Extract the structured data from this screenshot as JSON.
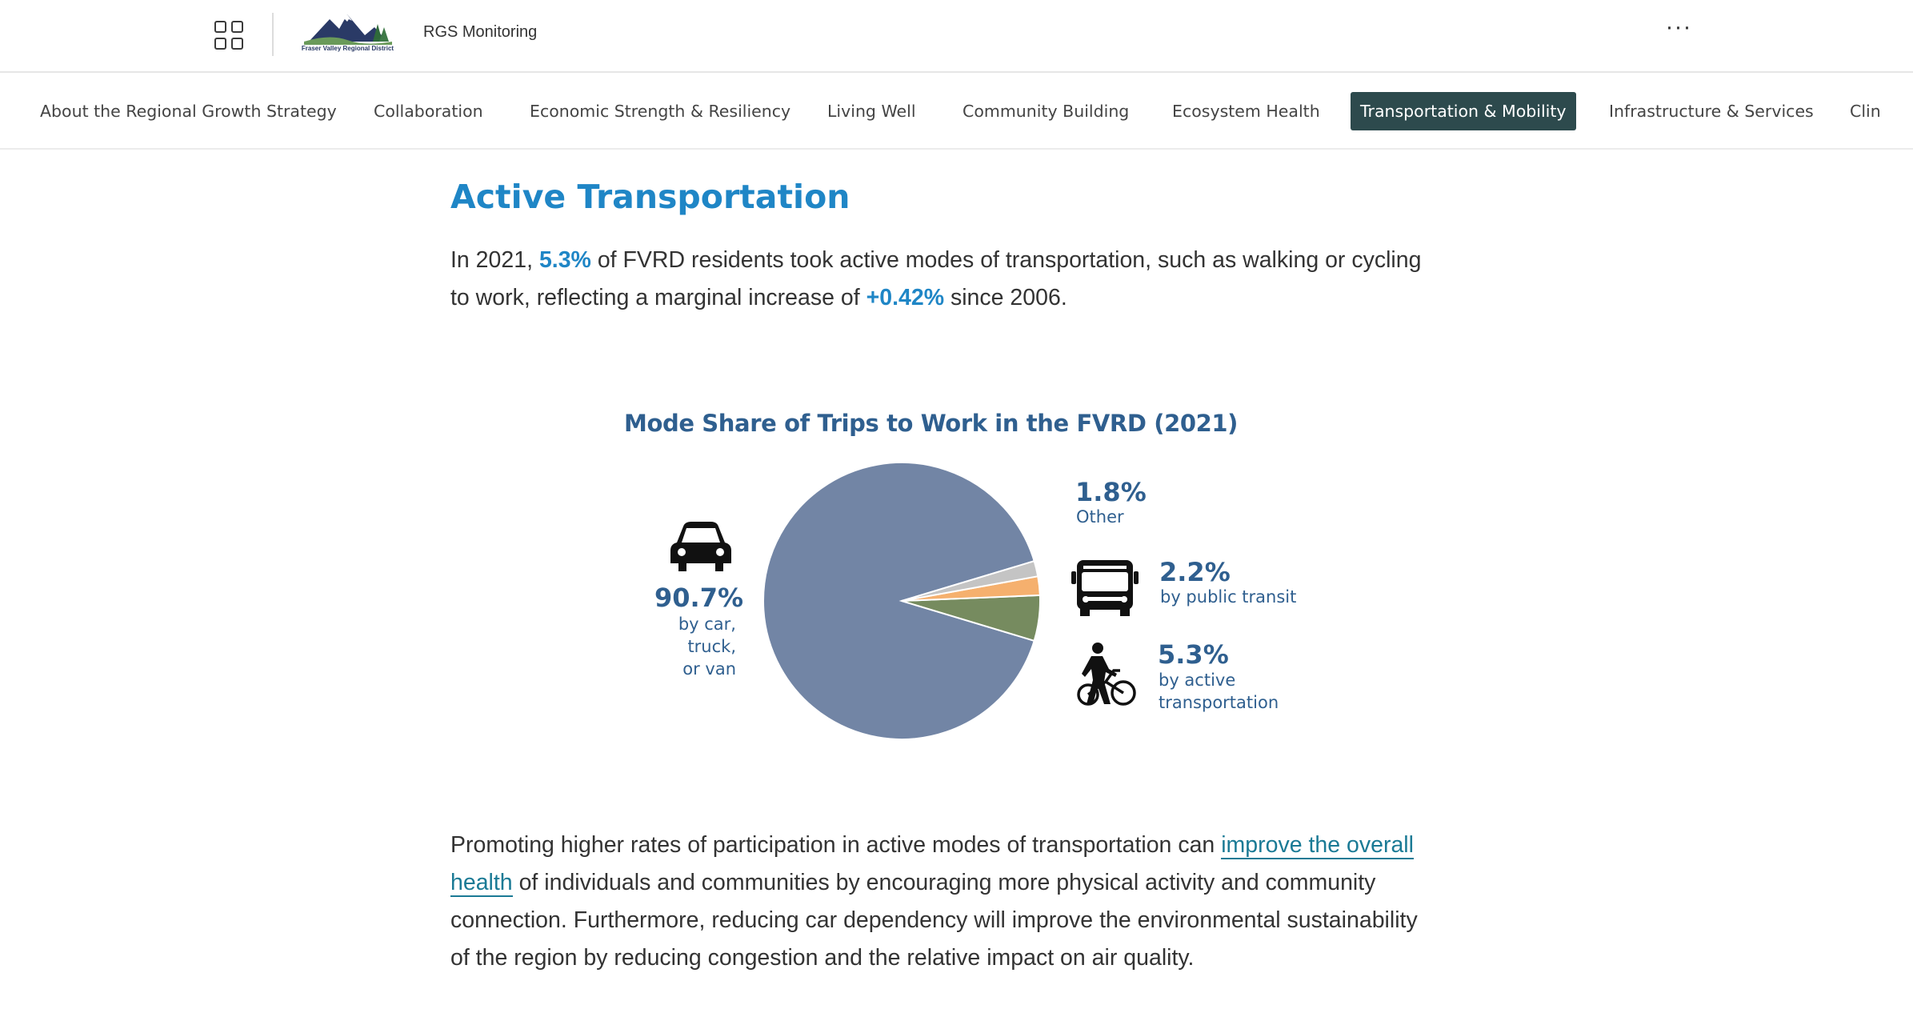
{
  "header": {
    "logo_text": "Fraser Valley Regional District",
    "site_title": "RGS Monitoring",
    "more_label": "···"
  },
  "nav": {
    "items": [
      {
        "label": "About the Regional Growth Strategy",
        "active": false
      },
      {
        "label": "Collaboration",
        "active": false
      },
      {
        "label": "Economic Strength & Resiliency",
        "active": false
      },
      {
        "label": "Living Well",
        "active": false
      },
      {
        "label": "Community Building",
        "active": false
      },
      {
        "label": "Ecosystem Health",
        "active": false
      },
      {
        "label": "Transportation & Mobility",
        "active": true
      },
      {
        "label": "Infrastructure & Services",
        "active": false
      },
      {
        "label": "Clin",
        "active": false
      }
    ]
  },
  "main": {
    "title": "Active Transportation",
    "intro": {
      "t1": "In 2021, ",
      "h1": "5.3%",
      "t2": " of FVRD residents took active modes of transportation, such as walking or cycling to work, reflecting a marginal increase of ",
      "h2": "+0.42%",
      "t3": " since 2006."
    },
    "body": {
      "t1": "Promoting higher rates of participation in active modes of transportation can ",
      "link": "improve the overall health",
      "t2": " of individuals and communities by encouraging more physical activity and community connection. Furthermore, reducing car dependency will improve the environmental sustainability of the region by reducing congestion and the relative impact on air quality."
    }
  },
  "chart_data": {
    "type": "pie",
    "title": "Mode Share of Trips to Work in the FVRD (2021)",
    "slices": [
      {
        "value_label": "90.7%",
        "label_lines": [
          "by car,",
          "truck,",
          "or van"
        ],
        "value": 90.7,
        "color": "#7285a5",
        "icon": "car-icon"
      },
      {
        "value_label": "5.3%",
        "label_lines": [
          "by active",
          "transportation"
        ],
        "value": 5.3,
        "color": "#768b5f",
        "icon": "pedestrian-bicycle-icon"
      },
      {
        "value_label": "2.2%",
        "label_lines": [
          "by public transit"
        ],
        "value": 2.2,
        "color": "#f5b06e",
        "icon": "bus-icon"
      },
      {
        "value_label": "1.8%",
        "label_lines": [
          "Other"
        ],
        "value": 1.8,
        "color": "#c4c4c4",
        "icon": ""
      }
    ]
  }
}
